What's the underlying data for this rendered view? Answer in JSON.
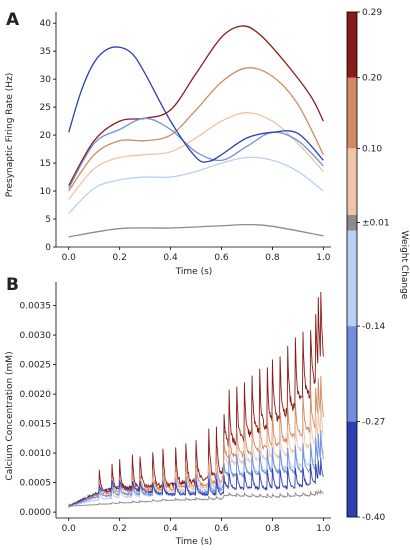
{
  "chart_data": [
    {
      "panel": "A",
      "type": "line",
      "xlabel": "Time (s)",
      "ylabel": "Presynaptic Firing Rate (Hz)",
      "xlim": [
        -0.05,
        1.03
      ],
      "ylim": [
        0,
        42
      ],
      "xticks": [
        "0.0",
        "0.2",
        "0.4",
        "0.6",
        "0.8",
        "1.0"
      ],
      "yticks": [
        "0",
        "5",
        "10",
        "15",
        "20",
        "25",
        "30",
        "35",
        "40"
      ],
      "grid": false,
      "series": [
        {
          "color": "#8b1a1a",
          "x": [
            0,
            0.1,
            0.2,
            0.3,
            0.4,
            0.5,
            0.6,
            0.68,
            0.75,
            0.85,
            0.95,
            1.0
          ],
          "y": [
            11,
            19,
            22.5,
            23,
            24.5,
            31,
            37.5,
            39.5,
            38,
            33,
            27,
            22.5
          ]
        },
        {
          "color": "#d08a60",
          "x": [
            0,
            0.1,
            0.2,
            0.3,
            0.4,
            0.5,
            0.6,
            0.7,
            0.8,
            0.9,
            1.0
          ],
          "y": [
            10,
            16.5,
            19,
            19,
            20,
            24.5,
            29.5,
            32,
            30.5,
            25.5,
            16.5
          ]
        },
        {
          "color": "#f0c4a8",
          "x": [
            0,
            0.1,
            0.2,
            0.3,
            0.4,
            0.5,
            0.6,
            0.7,
            0.8,
            0.9,
            1.0
          ],
          "y": [
            8.5,
            14,
            16,
            16.5,
            17,
            19.5,
            22.5,
            24,
            22.5,
            18.5,
            13.5
          ]
        },
        {
          "color": "#b9cff5",
          "x": [
            0,
            0.1,
            0.2,
            0.3,
            0.4,
            0.5,
            0.6,
            0.7,
            0.8,
            0.9,
            1.0
          ],
          "y": [
            6,
            10.5,
            12,
            12.5,
            12.5,
            13.5,
            15,
            16,
            15.5,
            13.5,
            10
          ]
        },
        {
          "color": "#6f8fe0",
          "x": [
            0,
            0.1,
            0.2,
            0.3,
            0.4,
            0.5,
            0.6,
            0.7,
            0.8,
            0.9,
            1.0
          ],
          "y": [
            10.5,
            18.5,
            21,
            23,
            21,
            17,
            15.5,
            18,
            20.5,
            19,
            14.5
          ]
        },
        {
          "color": "#2e3fb0",
          "x": [
            0,
            0.05,
            0.1,
            0.15,
            0.2,
            0.25,
            0.3,
            0.4,
            0.5,
            0.55,
            0.6,
            0.7,
            0.8,
            0.9,
            1.0
          ],
          "y": [
            20.5,
            28,
            33,
            35.3,
            35.7,
            34.5,
            31,
            22.5,
            16,
            15.3,
            16.5,
            19.5,
            20.5,
            20.3,
            15.5
          ]
        },
        {
          "color": "#8c8c8c",
          "x": [
            0,
            0.2,
            0.4,
            0.6,
            0.7,
            0.8,
            1.0
          ],
          "y": [
            1.8,
            3.3,
            3.4,
            3.8,
            4.0,
            3.7,
            2.0
          ]
        }
      ]
    },
    {
      "panel": "B",
      "type": "line",
      "xlabel": "Time (s)",
      "ylabel": "Calcium Concentration (mM)",
      "xlim": [
        -0.05,
        1.03
      ],
      "ylim": [
        -0.0001,
        0.0039
      ],
      "xticks": [
        "0.0",
        "0.2",
        "0.4",
        "0.6",
        "0.8",
        "1.0"
      ],
      "yticks": [
        "0.0000",
        "0.0005",
        "0.0010",
        "0.0015",
        "0.0020",
        "0.0025",
        "0.0030",
        "0.0035"
      ],
      "grid": false,
      "series": [
        {
          "color": "#8b1a1a",
          "base": [
            [
              0,
              0.0001
            ],
            [
              0.1,
              0.0003
            ],
            [
              0.2,
              0.0004
            ],
            [
              0.4,
              0.00045
            ],
            [
              0.6,
              0.0006
            ],
            [
              0.62,
              0.0011
            ],
            [
              0.8,
              0.0015
            ],
            [
              0.95,
              0.002
            ],
            [
              1.0,
              0.0024
            ]
          ],
          "peak_scale": 1.0
        },
        {
          "color": "#d08a60",
          "base": [
            [
              0,
              0.0001
            ],
            [
              0.1,
              0.00028
            ],
            [
              0.2,
              0.00035
            ],
            [
              0.4,
              0.0004
            ],
            [
              0.6,
              0.0005
            ],
            [
              0.62,
              0.0009
            ],
            [
              0.8,
              0.0011
            ],
            [
              0.95,
              0.0014
            ],
            [
              1.0,
              0.0015
            ]
          ],
          "peak_scale": 0.55
        },
        {
          "color": "#f0c4a8",
          "base": [
            [
              0,
              0.0001
            ],
            [
              0.1,
              0.00025
            ],
            [
              0.2,
              0.0003
            ],
            [
              0.4,
              0.00035
            ],
            [
              0.6,
              0.00045
            ],
            [
              0.62,
              0.0008
            ],
            [
              0.8,
              0.0009
            ],
            [
              0.95,
              0.0011
            ],
            [
              1.0,
              0.0012
            ]
          ],
          "peak_scale": 0.45
        },
        {
          "color": "#b9cff5",
          "base": [
            [
              0,
              0.0001
            ],
            [
              0.1,
              0.0002
            ],
            [
              0.2,
              0.00025
            ],
            [
              0.4,
              0.0003
            ],
            [
              0.6,
              0.0004
            ],
            [
              0.62,
              0.0006
            ],
            [
              0.8,
              0.0007
            ],
            [
              0.95,
              0.0008
            ],
            [
              1.0,
              0.0009
            ]
          ],
          "peak_scale": 0.35
        },
        {
          "color": "#6f8fe0",
          "base": [
            [
              0,
              0.0001
            ],
            [
              0.1,
              0.00025
            ],
            [
              0.2,
              0.0003
            ],
            [
              0.4,
              0.0003
            ],
            [
              0.6,
              0.00035
            ],
            [
              0.62,
              0.0006
            ],
            [
              0.8,
              0.00065
            ],
            [
              0.95,
              0.0007
            ],
            [
              1.0,
              0.0008
            ]
          ],
          "peak_scale": 0.4
        },
        {
          "color": "#2e3fb0",
          "base": [
            [
              0,
              0.0001
            ],
            [
              0.1,
              0.0003
            ],
            [
              0.16,
              0.0004
            ],
            [
              0.2,
              0.0004
            ],
            [
              0.4,
              0.0003
            ],
            [
              0.6,
              0.0003
            ],
            [
              0.62,
              0.0004
            ],
            [
              0.8,
              0.0004
            ],
            [
              0.95,
              0.00045
            ],
            [
              1.0,
              0.0005
            ]
          ],
          "peak_scale": 0.3
        },
        {
          "color": "#8c8c8c",
          "base": [
            [
              0,
              0.0001
            ],
            [
              0.2,
              0.00015
            ],
            [
              0.4,
              0.0002
            ],
            [
              0.6,
              0.00022
            ],
            [
              0.62,
              0.00028
            ],
            [
              0.8,
              0.00025
            ],
            [
              0.95,
              0.00028
            ],
            [
              1.0,
              0.0003
            ]
          ],
          "peak_scale": 0.05
        }
      ],
      "spike_times": [
        0.12,
        0.17,
        0.2,
        0.25,
        0.28,
        0.33,
        0.37,
        0.42,
        0.46,
        0.5,
        0.55,
        0.58,
        0.61,
        0.63,
        0.66,
        0.69,
        0.72,
        0.75,
        0.78,
        0.8,
        0.83,
        0.86,
        0.89,
        0.92,
        0.95,
        0.97,
        0.98,
        0.99
      ]
    }
  ],
  "colorbar": {
    "title": "Weight Change",
    "colors": [
      "#2e3fb0",
      "#6f8fe0",
      "#b9cff5",
      "#8c8c8c",
      "#f0c4a8",
      "#d08a60",
      "#8b1a1a"
    ],
    "tick_labels": [
      "0.29",
      "0.20",
      "0.10",
      "±0.01",
      "-0.14",
      "-0.27",
      "-0.40"
    ]
  },
  "panel_letters": {
    "a": "A",
    "b": "B"
  }
}
